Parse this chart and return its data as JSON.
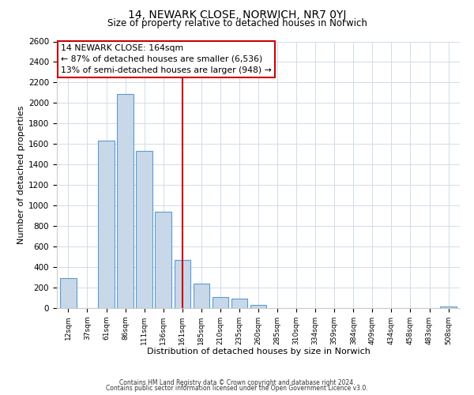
{
  "title": "14, NEWARK CLOSE, NORWICH, NR7 0YJ",
  "subtitle": "Size of property relative to detached houses in Norwich",
  "xlabel": "Distribution of detached houses by size in Norwich",
  "ylabel": "Number of detached properties",
  "bar_labels": [
    "12sqm",
    "37sqm",
    "61sqm",
    "86sqm",
    "111sqm",
    "136sqm",
    "161sqm",
    "185sqm",
    "210sqm",
    "235sqm",
    "260sqm",
    "285sqm",
    "310sqm",
    "334sqm",
    "359sqm",
    "384sqm",
    "409sqm",
    "434sqm",
    "458sqm",
    "483sqm",
    "508sqm"
  ],
  "bar_values": [
    290,
    0,
    1630,
    2090,
    1530,
    940,
    470,
    240,
    110,
    95,
    30,
    0,
    0,
    0,
    0,
    0,
    0,
    0,
    0,
    0,
    15
  ],
  "bar_color": "#c8d8e8",
  "bar_edge_color": "#5b9bd5",
  "vline_index": 6,
  "vline_color": "#cc0000",
  "annotation_title": "14 NEWARK CLOSE: 164sqm",
  "annotation_line1": "← 87% of detached houses are smaller (6,536)",
  "annotation_line2": "13% of semi-detached houses are larger (948) →",
  "annotation_box_color": "#ffffff",
  "annotation_box_edge": "#cc0000",
  "ylim": [
    0,
    2600
  ],
  "yticks": [
    0,
    200,
    400,
    600,
    800,
    1000,
    1200,
    1400,
    1600,
    1800,
    2000,
    2200,
    2400,
    2600
  ],
  "grid_color": "#d0dcea",
  "footnote1": "Contains HM Land Registry data © Crown copyright and database right 2024.",
  "footnote2": "Contains public sector information licensed under the Open Government Licence v3.0."
}
